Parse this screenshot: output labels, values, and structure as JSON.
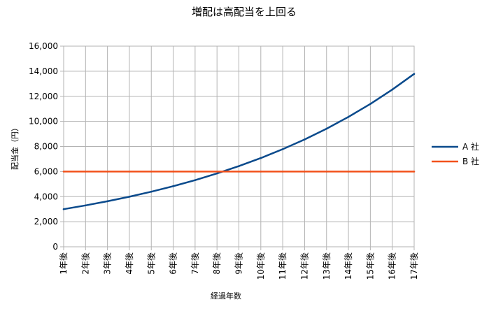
{
  "chart_data": {
    "type": "line",
    "title": "増配は高配当を上回る",
    "xlabel": "経過年数",
    "ylabel": "配当金（円）",
    "categories": [
      "1年後",
      "2年後",
      "3年後",
      "4年後",
      "5年後",
      "6年後",
      "7年後",
      "8年後",
      "9年後",
      "10年後",
      "11年後",
      "12年後",
      "13年後",
      "14年後",
      "15年後",
      "16年後",
      "17年後"
    ],
    "ylim": [
      0,
      16000
    ],
    "yticks": [
      "0",
      "2,000",
      "4,000",
      "6,000",
      "8,000",
      "10,000",
      "12,000",
      "14,000",
      "16,000"
    ],
    "grid": true,
    "legend_position": "right",
    "series": [
      {
        "name": "A 社",
        "color": "#0a4a8c",
        "values": [
          3000,
          3300,
          3630,
          3993,
          4392,
          4832,
          5315,
          5846,
          6431,
          7074,
          7781,
          8559,
          9415,
          10357,
          11392,
          12532,
          13785
        ]
      },
      {
        "name": "B 社",
        "color": "#f2511b",
        "values": [
          6000,
          6000,
          6000,
          6000,
          6000,
          6000,
          6000,
          6000,
          6000,
          6000,
          6000,
          6000,
          6000,
          6000,
          6000,
          6000,
          6000
        ]
      }
    ]
  }
}
